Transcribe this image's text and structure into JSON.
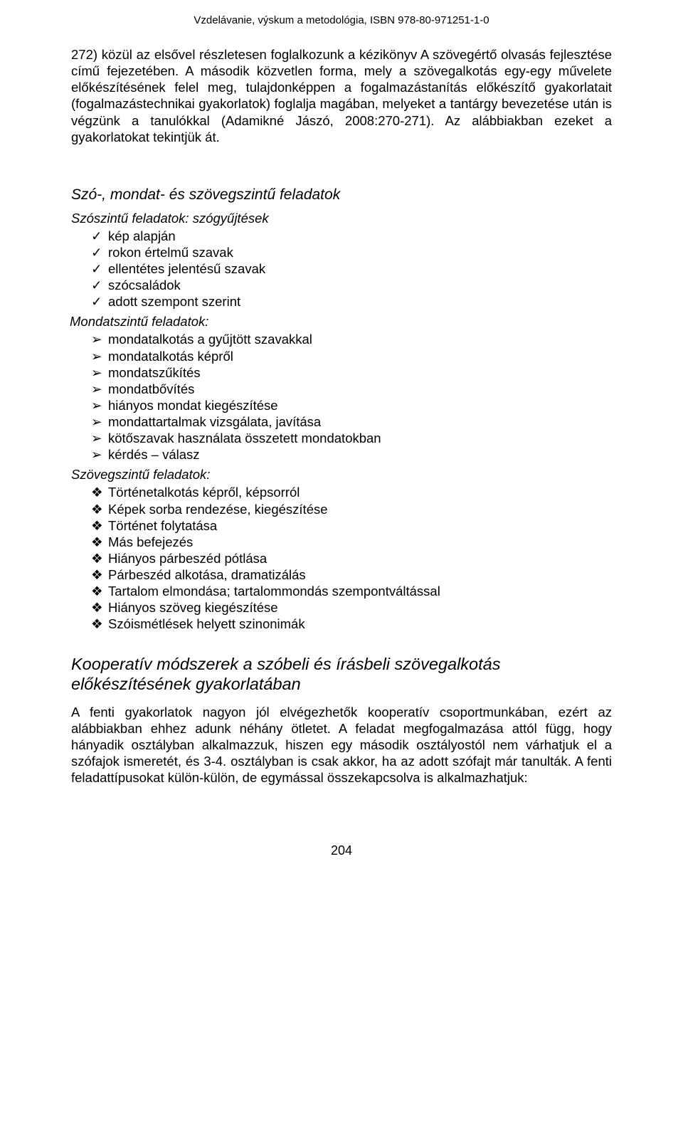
{
  "header": "Vzdelávanie, výskum a metodológia, ISBN 978-80-971251-1-0",
  "intro_para": "272) közül az elsővel részletesen foglalkozunk a kézikönyv A szövegértő olvasás fejlesztése című fejezetében. A második közvetlen forma, mely a szövegalkotás egy-egy művelete előkészítésének felel meg, tulajdonképpen a fogalmazástanítás előkészítő gyakorlatait (fogalmazástechnikai gyakorlatok) foglalja magában, melyeket a tantárgy bevezetése után is végzünk a tanulókkal (Adamikné Jászó, 2008:270-271). Az alábbiakban ezeket a gyakorlatokat tekintjük át.",
  "section1_title": "Szó-, mondat- és szövegszintű feladatok",
  "sub_szoszintu": "Szószintű feladatok: szógyűjtések",
  "szoszintu_items": [
    "kép alapján",
    "rokon értelmű szavak",
    "ellentétes jelentésű szavak",
    "szócsaládok",
    "adott szempont szerint"
  ],
  "sub_mondatszintu": "Mondatszintű feladatok:",
  "mondatszintu_items": [
    "mondatalkotás a gyűjtött szavakkal",
    "mondatalkotás képről",
    "mondatszűkítés",
    "mondatbővítés",
    "hiányos mondat kiegészítése",
    "mondattartalmak vizsgálata, javítása",
    "kötőszavak használata összetett mondatokban",
    "kérdés – válasz"
  ],
  "sub_szovegszintu": "Szövegszintű feladatok:",
  "szovegszintu_items": [
    "Történetalkotás képről, képsorról",
    "Képek sorba rendezése, kiegészítése",
    "Történet folytatása",
    "Más befejezés",
    "Hiányos párbeszéd pótlása",
    "Párbeszéd alkotása, dramatizálás",
    "Tartalom elmondása; tartalommondás szempontváltással",
    "Hiányos szöveg kiegészítése",
    "Szóismétlések helyett szinonimák"
  ],
  "section2_title": "Kooperatív módszerek a szóbeli és írásbeli szövegalkotás előkészítésének gyakorlatában",
  "closing_para": "A fenti gyakorlatok nagyon jól elvégezhetők kooperatív csoportmunkában, ezért az alábbiakban ehhez adunk néhány ötletet. A feladat megfogalmazása attól függ, hogy hányadik osztályban alkalmazzuk, hiszen egy második osztályostól nem várhatjuk el a szófajok ismeretét, és 3-4. osztályban is csak akkor, ha az adott szófajt már tanulták. A fenti feladattípusokat külön-külön, de egymással összekapcsolva is alkalmazhatjuk:",
  "page_number": "204",
  "bullets": {
    "check": "✓",
    "arrow": "➢",
    "diamond": "❖"
  },
  "colors": {
    "text": "#000000",
    "background": "#ffffff"
  }
}
